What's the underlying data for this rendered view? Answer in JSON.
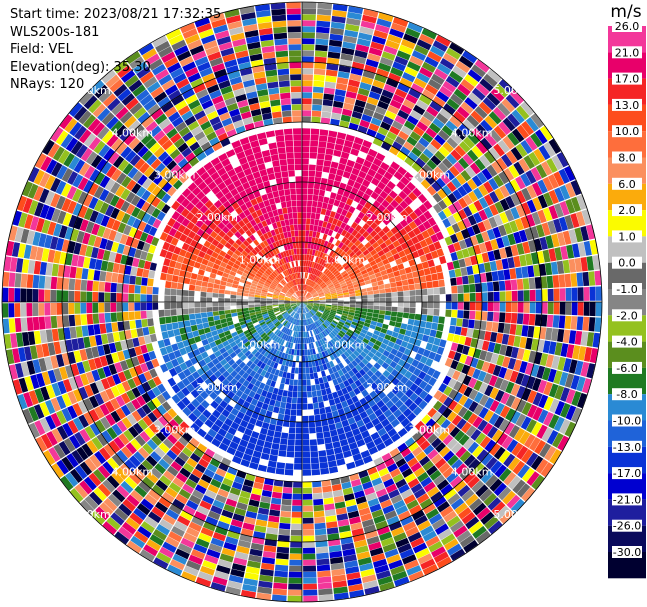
{
  "info": {
    "start_time": "Start time: 2023/08/21 17:32:35",
    "station": "WLS200s-181",
    "field": "Field: VEL",
    "elevation": "Elevation(deg): 35.30",
    "nrays": "NRays: 120"
  },
  "chart_data": {
    "type": "heatmap",
    "projection": "polar-ppi",
    "field": "VEL",
    "rays": 120,
    "range_rings_km": [
      1,
      2,
      3,
      4,
      5
    ],
    "range_ring_labels": [
      "1.00km",
      "2.00km",
      "3.00km",
      "4.00km",
      "5.00km"
    ],
    "colorbar": {
      "unit": "m/s",
      "ticks": [
        "26.0",
        "21.0",
        "17.0",
        "13.0",
        "10.0",
        "8.0",
        "6.0",
        "2.0",
        "1.0",
        "0.0",
        "-1.0",
        "-2.0",
        "-4.0",
        "-6.0",
        "-8.0",
        "-10.0",
        "-13.0",
        "-17.0",
        "-21.0",
        "-26.0",
        "-30.0"
      ],
      "colors": [
        "#f3379a",
        "#e8006a",
        "#f52525",
        "#fd4d1d",
        "#fe6e3c",
        "#fb8f5e",
        "#fbab0c",
        "#fbfb00",
        "#c0c0c0",
        "#696969",
        "#858585",
        "#94c11f",
        "#5b8e1e",
        "#1f7a22",
        "#2a8ad4",
        "#1f63d9",
        "#0a33d6",
        "#0000d0",
        "#1e1e9e",
        "#0a0a5c",
        "#000030"
      ]
    },
    "pattern": "near-field positive velocities (red/orange/yellow) to the north, negative velocities (green/blue) to the south; noise at far ranges"
  }
}
